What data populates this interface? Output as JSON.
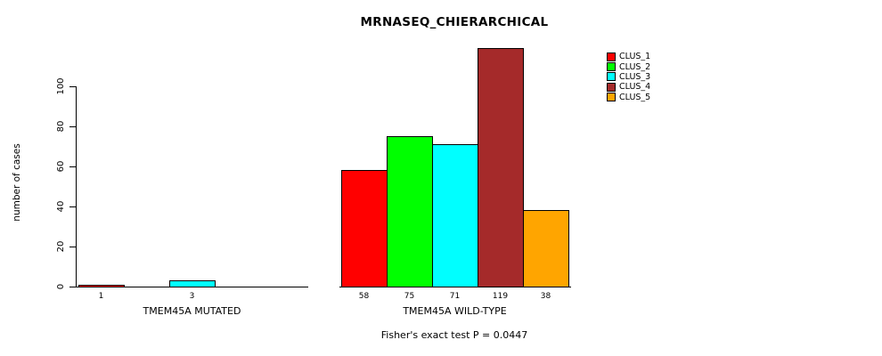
{
  "chart_data": {
    "type": "bar",
    "title": "MRNASEQ_CHIERARCHICAL",
    "ylabel": "number of cases",
    "yticks": [
      0,
      20,
      40,
      60,
      80,
      100
    ],
    "ylim": [
      0,
      125
    ],
    "grid": false,
    "legend_position": "top-right",
    "groups": [
      {
        "label": "TMEM45A MUTATED",
        "values": [
          1,
          0,
          3,
          0,
          0
        ],
        "bar_labels": [
          "1",
          "",
          "3",
          "",
          ""
        ]
      },
      {
        "label": "TMEM45A WILD-TYPE",
        "values": [
          58,
          75,
          71,
          119,
          38
        ],
        "bar_labels": [
          "58",
          "75",
          "71",
          "119",
          "38"
        ]
      }
    ],
    "series_colors": [
      "#ff0000",
      "#00ff00",
      "#00ffff",
      "#a52a2a",
      "#ffa500"
    ],
    "legend": [
      {
        "label": "CLUS_1",
        "color": "#ff0000"
      },
      {
        "label": "CLUS_2",
        "color": "#00ff00"
      },
      {
        "label": "CLUS_3",
        "color": "#00ffff"
      },
      {
        "label": "CLUS_4",
        "color": "#a52a2a"
      },
      {
        "label": "CLUS_5",
        "color": "#ffa500"
      }
    ],
    "annotation": "Fisher's exact test P = 0.0447"
  }
}
